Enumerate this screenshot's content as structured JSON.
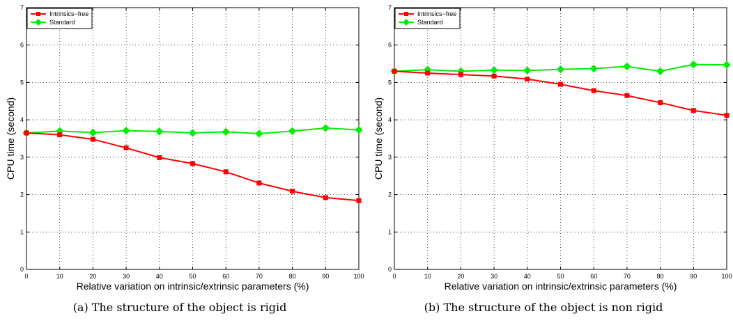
{
  "chart_data": [
    {
      "type": "line",
      "x": [
        0,
        10,
        20,
        30,
        40,
        50,
        60,
        70,
        80,
        90,
        100
      ],
      "xlabel": "Relative variation on intrinsic/extrinsic parameters (%)",
      "ylabel": "CPU time (second)",
      "xlim": [
        0,
        100
      ],
      "ylim": [
        0,
        7
      ],
      "xticks": [
        "0",
        "10",
        "20",
        "30",
        "40",
        "50",
        "60",
        "70",
        "80",
        "90",
        "100"
      ],
      "yticks": [
        "0",
        "1",
        "2",
        "3",
        "4",
        "5",
        "6",
        "7"
      ],
      "grid": true,
      "legend_position": "top-left",
      "caption": "(a) The structure of the object is rigid",
      "series": [
        {
          "name": "Intrinsics−free",
          "color": "#ff0000",
          "marker": "square",
          "values": [
            3.65,
            3.6,
            3.48,
            3.25,
            2.99,
            2.83,
            2.61,
            2.31,
            2.09,
            1.92,
            1.84
          ]
        },
        {
          "name": "Standard",
          "color": "#00ee00",
          "marker": "diamond",
          "values": [
            3.65,
            3.7,
            3.66,
            3.71,
            3.69,
            3.65,
            3.68,
            3.63,
            3.7,
            3.78,
            3.73
          ]
        }
      ]
    },
    {
      "type": "line",
      "x": [
        0,
        10,
        20,
        30,
        40,
        50,
        60,
        70,
        80,
        90,
        100
      ],
      "xlabel": "Relative variation on intrinsic/extrinsic parameters (%)",
      "ylabel": "CPU time (second)",
      "xlim": [
        0,
        100
      ],
      "ylim": [
        0,
        7
      ],
      "xticks": [
        "0",
        "10",
        "20",
        "30",
        "40",
        "50",
        "60",
        "70",
        "80",
        "90",
        "100"
      ],
      "yticks": [
        "0",
        "1",
        "2",
        "3",
        "4",
        "5",
        "6",
        "7"
      ],
      "grid": true,
      "legend_position": "top-left",
      "caption": "(b) The structure of the object is non rigid",
      "series": [
        {
          "name": "Intrinsics−free",
          "color": "#ff0000",
          "marker": "square",
          "values": [
            5.3,
            5.25,
            5.21,
            5.17,
            5.09,
            4.95,
            4.78,
            4.65,
            4.46,
            4.25,
            4.12
          ]
        },
        {
          "name": "Standard",
          "color": "#00ee00",
          "marker": "diamond",
          "values": [
            5.3,
            5.34,
            5.3,
            5.33,
            5.32,
            5.35,
            5.37,
            5.43,
            5.3,
            5.48,
            5.47
          ]
        }
      ]
    }
  ]
}
